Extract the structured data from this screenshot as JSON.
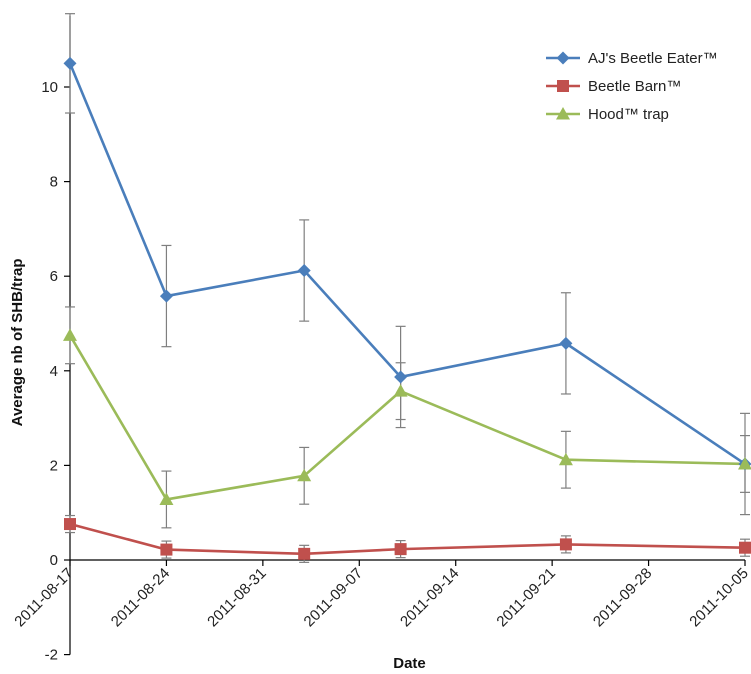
{
  "chart_data": {
    "type": "line",
    "xlabel": "Date",
    "ylabel": "Average nb of SHB/trap",
    "ylim": [
      -2,
      11.5
    ],
    "yticks": [
      -2,
      0,
      2,
      4,
      6,
      8,
      10
    ],
    "xlim": [
      "2011-08-17",
      "2011-10-05"
    ],
    "xticks": [
      "2011-08-17",
      "2011-08-24",
      "2011-08-31",
      "2011-09-07",
      "2011-09-14",
      "2011-09-21",
      "2011-09-28",
      "2011-10-05"
    ],
    "grid": false,
    "legend_position": "top-right",
    "series": [
      {
        "name": "AJ's Beetle Eater™",
        "color": "#4a7ebb",
        "marker": "diamond",
        "points": [
          {
            "x": "2011-08-17",
            "y": 10.5,
            "err": 1.05
          },
          {
            "x": "2011-08-24",
            "y": 5.58,
            "err": 1.07
          },
          {
            "x": "2011-09-03",
            "y": 6.12,
            "err": 1.07
          },
          {
            "x": "2011-09-10",
            "y": 3.87,
            "err": 1.07
          },
          {
            "x": "2011-09-22",
            "y": 4.58,
            "err": 1.07
          },
          {
            "x": "2011-10-05",
            "y": 2.03,
            "err": 1.07
          }
        ]
      },
      {
        "name": "Beetle Barn™",
        "color": "#c0504d",
        "marker": "square",
        "points": [
          {
            "x": "2011-08-17",
            "y": 0.76,
            "err": 0.18
          },
          {
            "x": "2011-08-24",
            "y": 0.22,
            "err": 0.18
          },
          {
            "x": "2011-09-03",
            "y": 0.13,
            "err": 0.18
          },
          {
            "x": "2011-09-10",
            "y": 0.23,
            "err": 0.18
          },
          {
            "x": "2011-09-22",
            "y": 0.33,
            "err": 0.18
          },
          {
            "x": "2011-10-05",
            "y": 0.26,
            "err": 0.18
          }
        ]
      },
      {
        "name": "Hood™ trap",
        "color": "#9bbb59",
        "marker": "triangle",
        "points": [
          {
            "x": "2011-08-17",
            "y": 4.75,
            "err": 0.6
          },
          {
            "x": "2011-08-24",
            "y": 1.28,
            "err": 0.6
          },
          {
            "x": "2011-09-03",
            "y": 1.78,
            "err": 0.6
          },
          {
            "x": "2011-09-10",
            "y": 3.57,
            "err": 0.6
          },
          {
            "x": "2011-09-22",
            "y": 2.12,
            "err": 0.6
          },
          {
            "x": "2011-10-05",
            "y": 2.03,
            "err": 0.6
          }
        ]
      }
    ]
  }
}
